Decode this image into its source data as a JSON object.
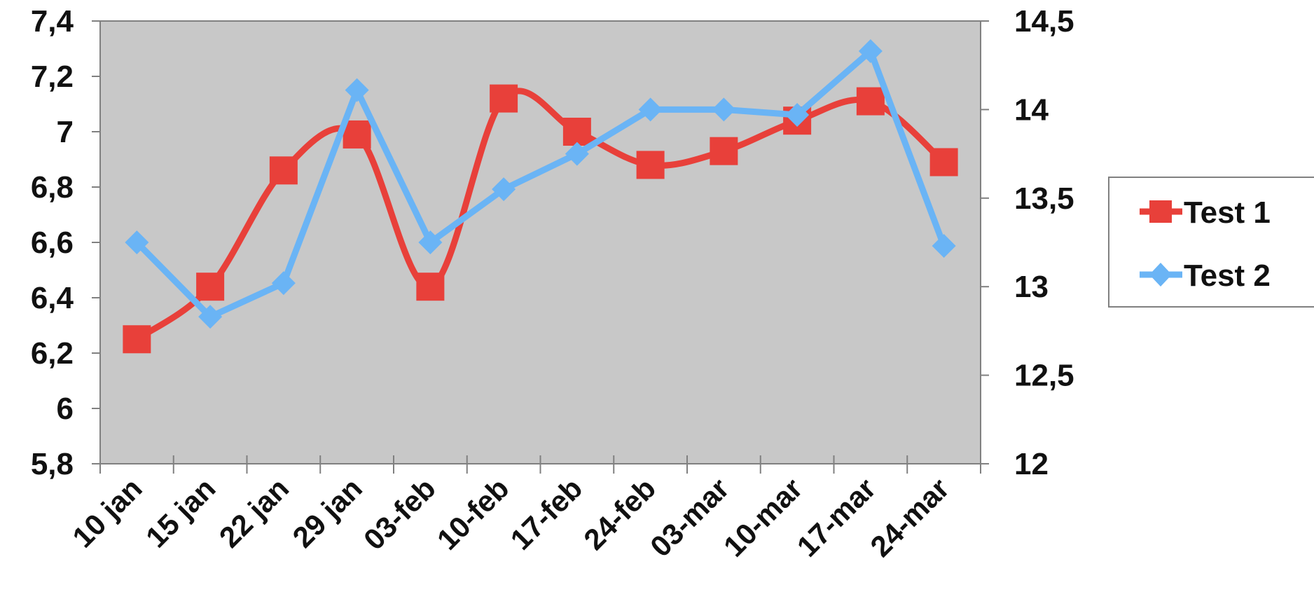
{
  "chart_data": {
    "type": "line",
    "categories": [
      "10 jan",
      "15 jan",
      "22 jan",
      "29 jan",
      "03-feb",
      "10-feb",
      "17-feb",
      "24-feb",
      "03-mar",
      "10-mar",
      "17-mar",
      "24-mar"
    ],
    "series": [
      {
        "name": "Test 1",
        "axis": "left",
        "color": "#e8403a",
        "marker": "square",
        "smooth": true,
        "values": [
          6.25,
          6.44,
          6.86,
          6.99,
          6.44,
          7.12,
          7.0,
          6.88,
          6.93,
          7.04,
          7.11,
          6.89
        ]
      },
      {
        "name": "Test 2",
        "axis": "right",
        "color": "#6ab4f5",
        "marker": "diamond",
        "smooth": false,
        "values": [
          13.25,
          12.83,
          13.02,
          14.11,
          13.25,
          13.55,
          13.75,
          14.0,
          14.0,
          13.97,
          14.33,
          13.23
        ]
      }
    ],
    "y_left": {
      "min": 5.8,
      "max": 7.4,
      "ticks": [
        "7,4",
        "7,2",
        "7",
        "6,8",
        "6,6",
        "6,4",
        "6,2",
        "6",
        "5,8"
      ],
      "tick_values": [
        7.4,
        7.2,
        7.0,
        6.8,
        6.6,
        6.4,
        6.2,
        6.0,
        5.8
      ]
    },
    "y_right": {
      "min": 12,
      "max": 14.5,
      "ticks": [
        "14,5",
        "14",
        "13,5",
        "13",
        "12,5",
        "12"
      ],
      "tick_values": [
        14.5,
        14,
        13.5,
        13,
        12.5,
        12
      ]
    },
    "plot_background": "#c8c8c8",
    "grid": false,
    "legend_position": "right"
  }
}
